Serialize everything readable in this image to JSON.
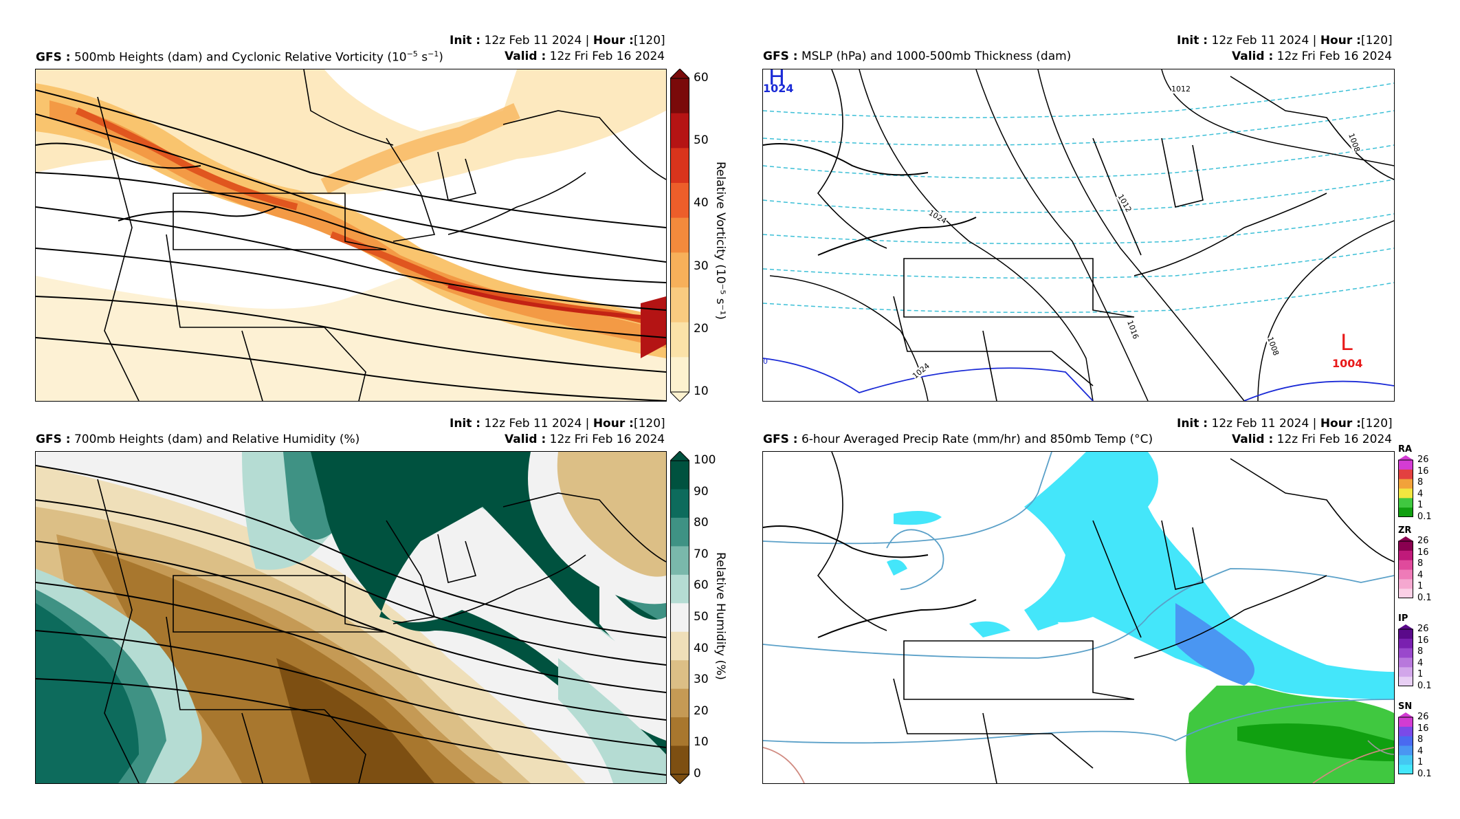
{
  "panels": [
    {
      "model": "GFS",
      "title": "500mb Heights (dam) and Cyclonic Relative Vorticity (10",
      "title_sup": "−5",
      "title_mid": " s",
      "title_sup2": "−1",
      "title_end": ")",
      "init_label": "Init",
      "init_value": "12z Feb 11 2024",
      "hour_label": "Hour",
      "hour_value": "[120]",
      "valid_label": "Valid",
      "valid_value": "12z Fri Feb 16 2024",
      "colorbar": {
        "ticks": [
          "60",
          "50",
          "40",
          "30",
          "20",
          "10"
        ],
        "label": "Relative Vorticity (10⁻⁵ s⁻¹)",
        "colors": [
          "#7a0a0a",
          "#b51414",
          "#d9341c",
          "#ed5e2a",
          "#f38a3c",
          "#f7b05a",
          "#f9cb80",
          "#fbe2a8",
          "#fdf2cf"
        ]
      }
    },
    {
      "model": "GFS",
      "title": "MSLP (hPa) and 1000-500mb Thickness (dam)",
      "init_label": "Init",
      "init_value": "12z Feb 11 2024",
      "hour_label": "Hour",
      "hour_value": "[120]",
      "valid_label": "Valid",
      "valid_value": "12z Fri Feb 16 2024",
      "high": {
        "letter": "H",
        "value": "1024"
      },
      "low": {
        "letter": "L",
        "value": "1004"
      },
      "isobar_labels": [
        "1012",
        "1012",
        "1024",
        "1016",
        "1008",
        "1024",
        "1008"
      ],
      "thickness_label": "0"
    },
    {
      "model": "GFS",
      "title": "700mb Heights (dam) and Relative Humidity (%)",
      "init_label": "Init",
      "init_value": "12z Feb 11 2024",
      "hour_label": "Hour",
      "hour_value": "[120]",
      "valid_label": "Valid",
      "valid_value": "12z Fri Feb 16 2024",
      "colorbar": {
        "ticks": [
          "100",
          "90",
          "80",
          "70",
          "60",
          "50",
          "40",
          "30",
          "20",
          "10",
          "0"
        ],
        "label": "Relative Humidity (%)",
        "colors": [
          "#00523f",
          "#0d6b5c",
          "#3f9284",
          "#7ab8ab",
          "#b5dcd3",
          "#f2f2f2",
          "#efdfb9",
          "#dcbf86",
          "#c59a55",
          "#a8772e",
          "#7d4f12"
        ]
      }
    },
    {
      "model": "GFS",
      "title": "6-hour Averaged Precip Rate (mm/hr) and 850mb Temp (°C)",
      "init_label": "Init",
      "init_value": "12z Feb 11 2024",
      "hour_label": "Hour",
      "hour_value": "[120]",
      "valid_label": "Valid",
      "valid_value": "12z Fri Feb 16 2024",
      "precip_bars": [
        {
          "type": "RA",
          "ticks": [
            "26",
            "16",
            "8",
            "4",
            "1",
            "0.1"
          ],
          "colors": [
            "#d43cd4",
            "#e34040",
            "#f2a23a",
            "#f2e640",
            "#40c840",
            "#10a010"
          ]
        },
        {
          "type": "ZR",
          "ticks": [
            "26",
            "16",
            "8",
            "4",
            "1",
            "0.1"
          ],
          "colors": [
            "#8a0050",
            "#c01a7a",
            "#e04a9c",
            "#ee7bb8",
            "#f5a8d0",
            "#fbd0e6"
          ]
        },
        {
          "type": "IP",
          "ticks": [
            "26",
            "16",
            "8",
            "4",
            "1",
            "0.1"
          ],
          "colors": [
            "#5a0a8a",
            "#7a20b0",
            "#9a48cc",
            "#b878dc",
            "#d2a6ea",
            "#e8cff4"
          ]
        },
        {
          "type": "SN",
          "ticks": [
            "26",
            "16",
            "8",
            "4",
            "1",
            "0.1"
          ],
          "colors": [
            "#d23cd2",
            "#7a4ae8",
            "#4a6af0",
            "#4a96f2",
            "#44c8f2",
            "#44e6fa"
          ]
        }
      ]
    }
  ]
}
